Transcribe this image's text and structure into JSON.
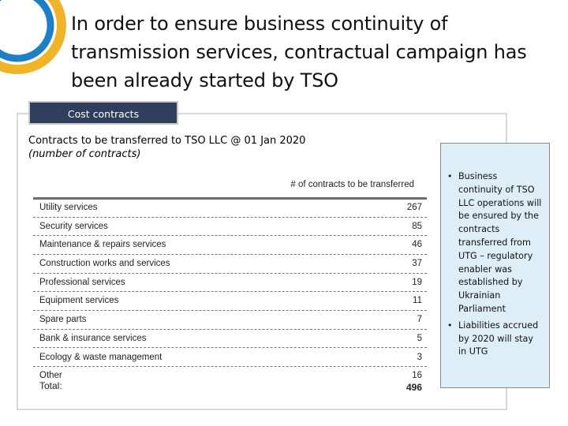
{
  "slide": {
    "title": "In order to ensure business continuity of transmission services, contractual campaign has been already started by TSO"
  },
  "tab": {
    "label": "Cost contracts"
  },
  "subtitle": {
    "heading": "Contracts to be transferred to TSO LLC @ 01 Jan 2020",
    "note": "(number of contracts)"
  },
  "table": {
    "column_header": "# of contracts to be transferred",
    "rows": [
      {
        "label": "Utility services",
        "value": "267"
      },
      {
        "label": "Security services",
        "value": "85"
      },
      {
        "label": "Maintenance & repairs services",
        "value": "46"
      },
      {
        "label": "Construction works and services",
        "value": "37"
      },
      {
        "label": "Professional services",
        "value": "19"
      },
      {
        "label": "Equipment services",
        "value": "11"
      },
      {
        "label": "Spare parts",
        "value": "7"
      },
      {
        "label": "Bank & insurance services",
        "value": "5"
      },
      {
        "label": "Ecology & waste management",
        "value": "3"
      },
      {
        "label": "Other",
        "value": "16"
      }
    ],
    "total_label": "Total:",
    "total_value": "496"
  },
  "side_notes": [
    "Business continuity of TSO LLC operations will be ensured by the contracts transferred from UTG – regulatory enabler was established by Ukrainian Parliament",
    "Liabilities accrued by 2020 will stay in UTG"
  ],
  "colors": {
    "tab_bg": "#2f3e5c",
    "side_box_bg": "#ddeef6",
    "logo_gold": "#f0b429",
    "logo_blue": "#1f7fc4"
  },
  "icons": {
    "logo": "company-logo-icon"
  }
}
